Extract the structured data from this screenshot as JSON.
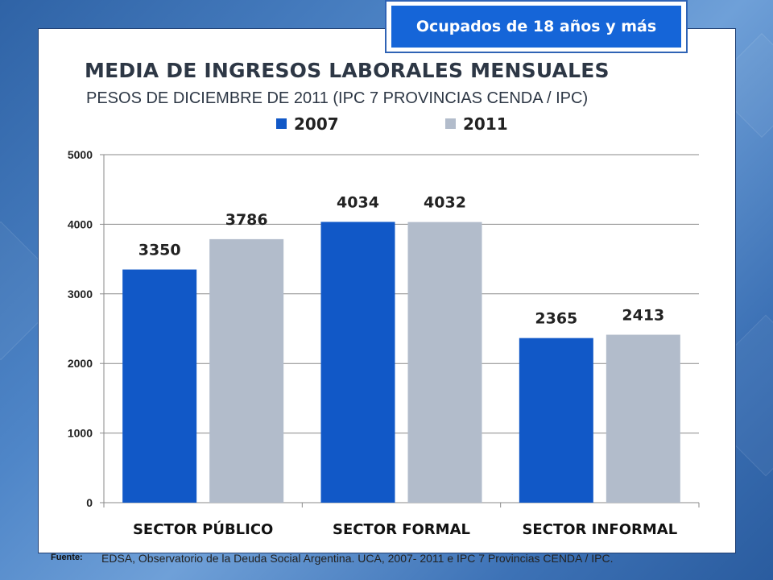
{
  "badge": {
    "text": "Ocupados de 18 años y más"
  },
  "source": {
    "label": "Fuente:",
    "text": "EDSA, Observatorio de la Deuda Social Argentina. UCA, 2007- 2011 e IPC 7 Provincias CENDA / IPC."
  },
  "colors": {
    "2007": "#1158c7",
    "2011": "#b2bccb",
    "panel_border": "#1f3f73",
    "badge_fill": "#1565d8"
  },
  "chart_data": {
    "type": "bar",
    "title": "MEDIA DE INGRESOS LABORALES MENSUALES",
    "subtitle": "PESOS DE DICIEMBRE DE 2011 (IPC 7 PROVINCIAS CENDA / IPC)",
    "categories": [
      "SECTOR PÚBLICO",
      "SECTOR FORMAL",
      "SECTOR INFORMAL"
    ],
    "series": [
      {
        "name": "2007",
        "values": [
          3350,
          4034,
          2365
        ],
        "color": "#1158c7"
      },
      {
        "name": "2011",
        "values": [
          3786,
          4032,
          2413
        ],
        "color": "#b2bccb"
      }
    ],
    "ylim": [
      0,
      5000
    ],
    "yticks": [
      0,
      1000,
      2000,
      3000,
      4000,
      5000
    ],
    "legend": "top-center",
    "grid": true,
    "data_labels": true
  }
}
